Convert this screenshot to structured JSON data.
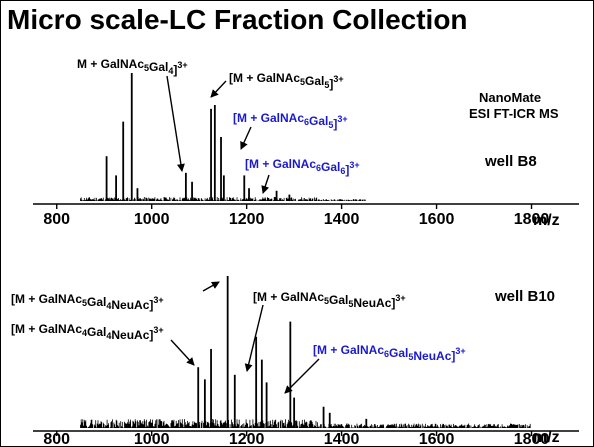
{
  "title": "Micro scale-LC Fraction Collection",
  "instrument": [
    "NanoMate",
    "ESI FT-ICR MS"
  ],
  "colors": {
    "ink": "#000000",
    "highlight": "#1a1acc"
  },
  "chart_data": [
    {
      "type": "line",
      "well_label": "well B8",
      "xlabel": "m/z",
      "xlim": [
        750,
        1900
      ],
      "tick_labels": [
        "800",
        "1000",
        "1200",
        "1400",
        "1600",
        "1800"
      ],
      "peaks": [
        [
          905,
          35
        ],
        [
          925,
          20
        ],
        [
          940,
          62
        ],
        [
          958,
          100
        ],
        [
          970,
          10
        ],
        [
          1072,
          22
        ],
        [
          1085,
          15
        ],
        [
          1125,
          72
        ],
        [
          1133,
          75
        ],
        [
          1146,
          50
        ],
        [
          1152,
          20
        ],
        [
          1195,
          20
        ],
        [
          1205,
          10
        ],
        [
          1263,
          8
        ],
        [
          1290,
          5
        ]
      ],
      "annotations": [
        {
          "parts": [
            [
              "M + GalNAc",
              "n"
            ],
            [
              "5",
              "sub"
            ],
            [
              "Gal",
              "n"
            ],
            [
              "4",
              "sub"
            ],
            [
              "]",
              "n"
            ],
            [
              "3+",
              "sup"
            ]
          ],
          "color": "#000000"
        },
        {
          "parts": [
            [
              "[M + GalNAc",
              "n"
            ],
            [
              "5",
              "sub"
            ],
            [
              "Gal",
              "n"
            ],
            [
              "5",
              "sub"
            ],
            [
              "]",
              "n"
            ],
            [
              "3+",
              "sup"
            ]
          ],
          "color": "#000000"
        },
        {
          "parts": [
            [
              "[M + GalNAc",
              "n"
            ],
            [
              "6",
              "sub"
            ],
            [
              "Gal",
              "n"
            ],
            [
              "5",
              "sub"
            ],
            [
              "]",
              "n"
            ],
            [
              "3+",
              "sup"
            ]
          ],
          "color": "#1a1acc"
        },
        {
          "parts": [
            [
              "[M + GalNAc",
              "n"
            ],
            [
              "6",
              "sub"
            ],
            [
              "Gal",
              "n"
            ],
            [
              "6",
              "sub"
            ],
            [
              "]",
              "n"
            ],
            [
              "3+",
              "sup"
            ]
          ],
          "color": "#1a1acc"
        }
      ]
    },
    {
      "type": "line",
      "well_label": "well B10",
      "xlabel": "m/z",
      "xlim": [
        750,
        1900
      ],
      "tick_labels": [
        "800",
        "1000",
        "1200",
        "1400",
        "1600",
        "1800"
      ],
      "peaks": [
        [
          1098,
          40
        ],
        [
          1112,
          32
        ],
        [
          1125,
          52
        ],
        [
          1160,
          100
        ],
        [
          1175,
          35
        ],
        [
          1220,
          60
        ],
        [
          1232,
          45
        ],
        [
          1242,
          30
        ],
        [
          1292,
          70
        ],
        [
          1300,
          20
        ],
        [
          1362,
          14
        ],
        [
          1375,
          10
        ],
        [
          1452,
          6
        ]
      ],
      "annotations": [
        {
          "parts": [
            [
              "[M + GalNAc",
              "n"
            ],
            [
              "5",
              "sub"
            ],
            [
              "Gal",
              "n"
            ],
            [
              "4",
              "sub"
            ],
            [
              "NeuAc]",
              "n"
            ],
            [
              "3+",
              "sup"
            ]
          ],
          "color": "#000000"
        },
        {
          "parts": [
            [
              "[M + GalNAc",
              "n"
            ],
            [
              "5",
              "sub"
            ],
            [
              "Gal",
              "n"
            ],
            [
              "5",
              "sub"
            ],
            [
              "NeuAc]",
              "n"
            ],
            [
              "3+",
              "sup"
            ]
          ],
          "color": "#000000"
        },
        {
          "parts": [
            [
              "[M + GalNAc",
              "n"
            ],
            [
              "4",
              "sub"
            ],
            [
              "Gal",
              "n"
            ],
            [
              "4",
              "sub"
            ],
            [
              "NeuAc]",
              "n"
            ],
            [
              "3+",
              "sup"
            ]
          ],
          "color": "#000000"
        },
        {
          "parts": [
            [
              "[M + GalNAc",
              "n"
            ],
            [
              "6",
              "sub"
            ],
            [
              "Gal",
              "n"
            ],
            [
              "5",
              "sub"
            ],
            [
              "NeuAc]",
              "n"
            ],
            [
              "3+",
              "sup"
            ]
          ],
          "color": "#1a1acc"
        }
      ]
    }
  ]
}
